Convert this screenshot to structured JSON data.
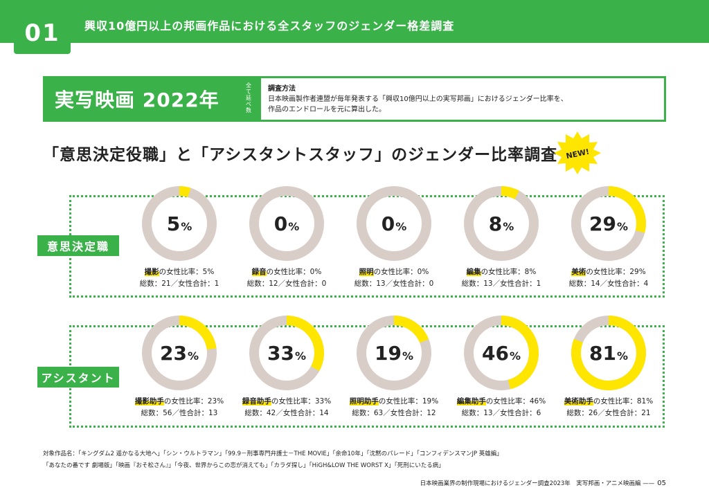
{
  "header": {
    "section_number": "01",
    "section_title": "興収10億円以上の邦画作品における全スタッフのジェンダー格差調査"
  },
  "title_box": {
    "main": "実写映画 2022年",
    "sub": "全て延べ数",
    "method_head": "調査方法",
    "method_line1": "日本映画製作者連盟が毎年発表する「興収10億円以上の実写邦画」におけるジェンダー比率を、",
    "method_line2": "作品のエンドロールを元に算出した。"
  },
  "subtitle": "「意思決定役職」と「アシスタントスタッフ」のジェンダー比率調査",
  "badge": "NEW!",
  "colors": {
    "green": "#3bb14a",
    "yellow": "#ffe600",
    "ring": "#d8cdc7"
  },
  "rows": [
    {
      "label": "意思決定職",
      "items": [
        {
          "pct": "5",
          "unit": "%",
          "value": 5,
          "role": "撮影",
          "ratio": "の女性比率：5%",
          "totals": "総数：21／女性合計：1"
        },
        {
          "pct": "0",
          "unit": "%",
          "value": 0,
          "role": "録音",
          "ratio": "の女性比率：0%",
          "totals": "総数：12／女性合計：0"
        },
        {
          "pct": "0",
          "unit": "%",
          "value": 0,
          "role": "照明",
          "ratio": "の女性比率：0%",
          "totals": "総数：13／女性合計：0"
        },
        {
          "pct": "8",
          "unit": "%",
          "value": 8,
          "role": "編集",
          "ratio": "の女性比率：8%",
          "totals": "総数：13／女性合計：1"
        },
        {
          "pct": "29",
          "unit": "%",
          "value": 29,
          "role": "美術",
          "ratio": "の女性比率：29%",
          "totals": "総数：14／女性合計：4"
        }
      ]
    },
    {
      "label": "アシスタント",
      "items": [
        {
          "pct": "23",
          "unit": "%",
          "value": 23,
          "role": "撮影助手",
          "ratio": "の女性比率：23%",
          "totals": "総数：56／性合計：13"
        },
        {
          "pct": "33",
          "unit": "%",
          "value": 33,
          "role": "録音助手",
          "ratio": "の女性比率：33%",
          "totals": "総数：42／女性合計：14"
        },
        {
          "pct": "19",
          "unit": "%",
          "value": 19,
          "role": "照明助手",
          "ratio": "の女性比率：19%",
          "totals": "総数：63／女性合計：12"
        },
        {
          "pct": "46",
          "unit": "%",
          "value": 46,
          "role": "編集助手",
          "ratio": "の女性比率：46%",
          "totals": "総数：13／女性合計：6"
        },
        {
          "pct": "81",
          "unit": "%",
          "value": 81,
          "role": "美術助手",
          "ratio": "の女性比率：81%",
          "totals": "総数：26／女性合計：21"
        }
      ]
    }
  ],
  "footer": {
    "works_line1": "対象作品名：「キングダム2 遥かなる大地へ」「シン・ウルトラマン」「99.9－刑事専門弁護士－THE MOVIE」「余命10年」「沈黙のパレード」「コンフィデンスマンJP 英雄編」",
    "works_line2": "「あなたの番です 劇場版」「映画『おそ松さん』」「今夜、世界からこの恋が消えても」「カラダ探し」「HiGH&LOW THE WORST X」「死刑にいたる病」",
    "report_name": "日本映画業界の制作現場におけるジェンダー調査2023年　実写邦画・アニメ映画編 ——",
    "page_number": "05"
  }
}
